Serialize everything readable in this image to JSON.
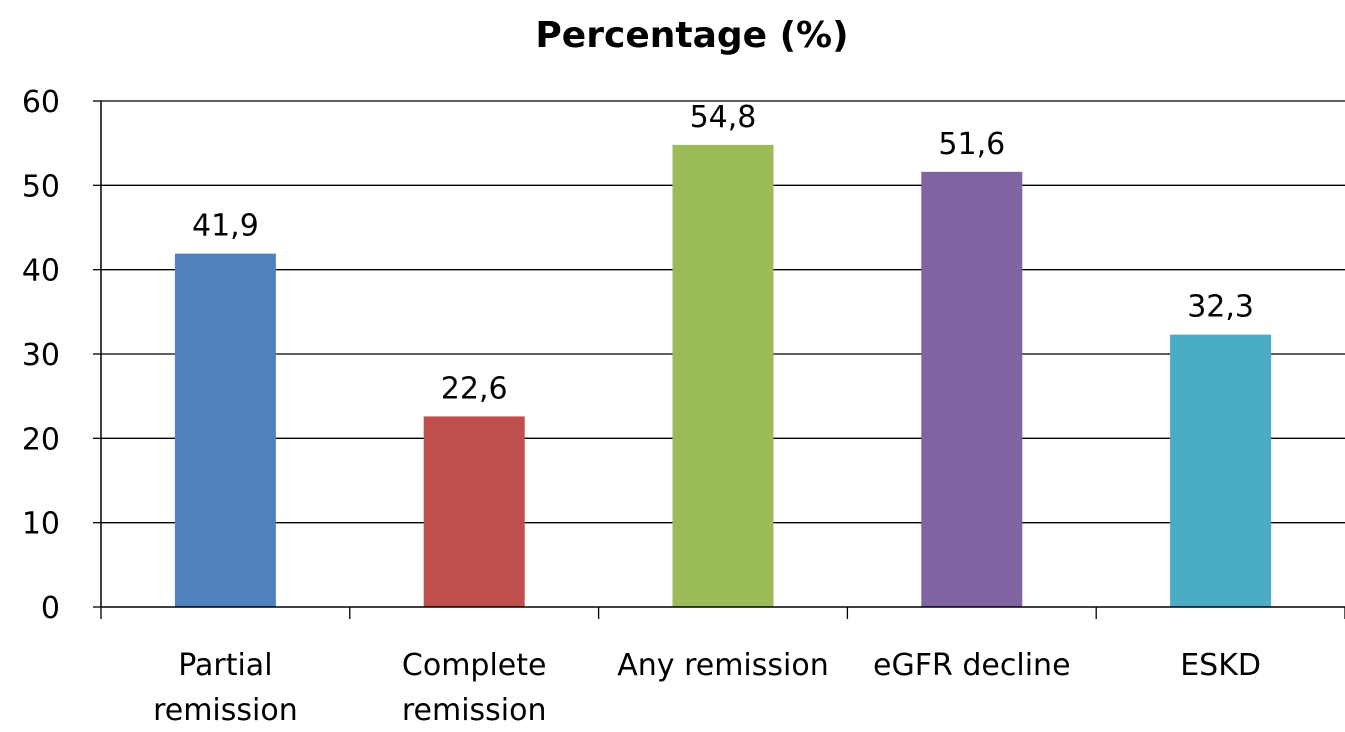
{
  "chart_data": {
    "type": "bar",
    "title": "Percentage (%)",
    "xlabel": "",
    "ylabel": "",
    "ylim": [
      0,
      60
    ],
    "yticks": [
      0,
      10,
      20,
      30,
      40,
      50,
      60
    ],
    "grid": true,
    "legend": "none",
    "categories": [
      [
        "Partial",
        "remission"
      ],
      [
        "Complete",
        "remission"
      ],
      [
        "Any remission"
      ],
      [
        "eGFR decline"
      ],
      [
        "ESKD"
      ]
    ],
    "values": [
      41.9,
      22.6,
      54.8,
      51.6,
      32.3
    ],
    "data_labels": [
      "41,9",
      "22,6",
      "54,8",
      "51,6",
      "32,3"
    ],
    "colors": [
      "#4F81BD",
      "#C0504D",
      "#9BBB59",
      "#8064A2",
      "#4BACC6"
    ]
  }
}
